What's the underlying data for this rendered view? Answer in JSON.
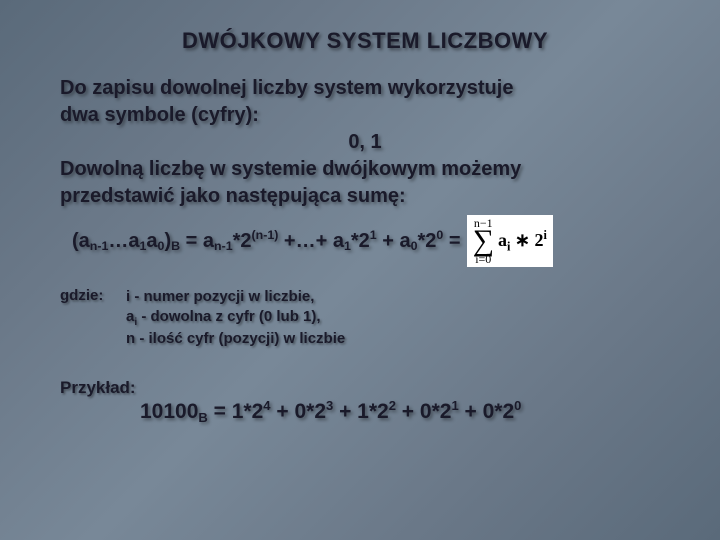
{
  "slide": {
    "title": "DWÓJKOWY SYSTEM LICZBOWY",
    "intro_line1": "Do zapisu dowolnej liczby system wykorzystuje",
    "intro_line2": "dwa symbole (cyfry):",
    "symbols": "0, 1",
    "sentence_line1": "Dowolną liczbę w systemie dwójkowym możemy",
    "sentence_line2": "przedstawić jako następująca sumę:",
    "formula_lhs_open": "(a",
    "formula_lhs_sub1": "n-1",
    "formula_lhs_mid1": "…a",
    "formula_lhs_sub2": "1",
    "formula_lhs_mid2": "a",
    "formula_lhs_sub3": "0",
    "formula_lhs_close": ")",
    "formula_lhs_base": "B",
    "formula_eq": " = a",
    "formula_t1_sub": "n-1",
    "formula_t1_mid": "*2",
    "formula_t1_sup": "(n-1)",
    "formula_plus1": " +…+ a",
    "formula_t2_sub": "1",
    "formula_t2_mid": "*2",
    "formula_t2_sup": "1",
    "formula_plus2": " + a",
    "formula_t3_sub": "0",
    "formula_t3_mid": "*2",
    "formula_t3_sup": "0",
    "formula_tail": " =",
    "sigma": {
      "upper": "n−1",
      "symbol": "∑",
      "lower": "i=0",
      "body_a": "a",
      "body_sub": "i",
      "body_mid": " ∗ 2",
      "body_sup": "i"
    },
    "gdzie_label": "gdzie:",
    "gdzie_line1": "i - numer pozycji w liczbie,",
    "gdzie_line2_a": "a",
    "gdzie_line2_sub": "i",
    "gdzie_line2_b": " - dowolna z cyfr (0 lub 1),",
    "gdzie_line3": "n - ilość cyfr (pozycji) w liczbie",
    "example_label": "Przykład:",
    "ex_num": "10100",
    "ex_base": "B",
    "ex_eq": " = 1*2",
    "ex_e4": "4",
    "ex_p1": " + 0*2",
    "ex_e3": "3",
    "ex_p2": " + 1*2",
    "ex_e2": "2",
    "ex_p3": " + 0*2",
    "ex_e1": "1",
    "ex_p4": " + 0*2",
    "ex_e0": "0"
  },
  "style": {
    "background_gradient": [
      "#5a6a7a",
      "#6a7888",
      "#788898"
    ],
    "text_color": "#1a1a2a",
    "shadow": "2px 2px 3px rgba(0,0,0,0.4)",
    "title_fontsize": 22,
    "body_fontsize": 20,
    "small_fontsize": 15,
    "sigma_box_bg": "#ffffff",
    "font_family": "Arial"
  }
}
